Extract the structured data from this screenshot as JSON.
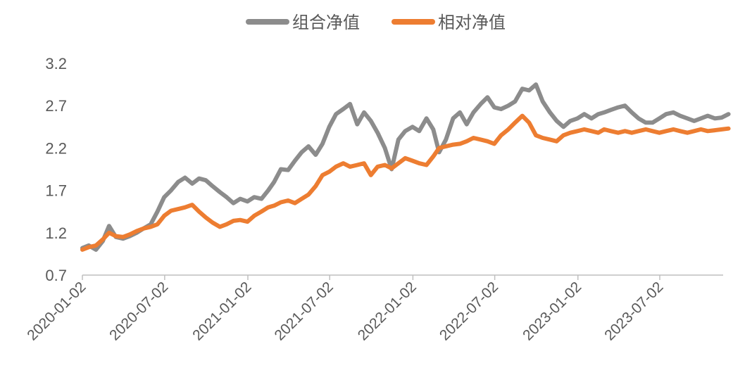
{
  "chart_data": {
    "type": "line",
    "legend_position": "top-center",
    "grid": false,
    "y_ticks": [
      "0.7",
      "1.2",
      "1.7",
      "2.2",
      "2.7",
      "3.2"
    ],
    "ylim": [
      0.7,
      3.2
    ],
    "x_ticks": [
      "2020-01-02",
      "2020-07-02",
      "2021-01-02",
      "2021-07-02",
      "2022-01-02",
      "2022-07-02",
      "2023-01-02",
      "2023-07-02"
    ],
    "x": [
      "2020-01-02",
      "2020-01-16",
      "2020-02-01",
      "2020-02-16",
      "2020-03-01",
      "2020-03-16",
      "2020-04-01",
      "2020-04-16",
      "2020-05-01",
      "2020-05-16",
      "2020-06-01",
      "2020-06-16",
      "2020-07-01",
      "2020-07-16",
      "2020-08-01",
      "2020-08-16",
      "2020-09-01",
      "2020-09-16",
      "2020-10-01",
      "2020-10-16",
      "2020-11-01",
      "2020-11-16",
      "2020-12-01",
      "2020-12-16",
      "2021-01-01",
      "2021-01-16",
      "2021-02-01",
      "2021-02-16",
      "2021-03-01",
      "2021-03-16",
      "2021-04-01",
      "2021-04-16",
      "2021-05-01",
      "2021-05-16",
      "2021-06-01",
      "2021-06-16",
      "2021-07-01",
      "2021-07-16",
      "2021-08-01",
      "2021-08-16",
      "2021-09-01",
      "2021-09-16",
      "2021-10-01",
      "2021-10-16",
      "2021-11-01",
      "2021-11-16",
      "2021-12-01",
      "2021-12-16",
      "2022-01-01",
      "2022-01-16",
      "2022-02-01",
      "2022-02-16",
      "2022-03-01",
      "2022-03-16",
      "2022-04-01",
      "2022-04-16",
      "2022-05-01",
      "2022-05-16",
      "2022-06-01",
      "2022-06-16",
      "2022-07-01",
      "2022-07-16",
      "2022-08-01",
      "2022-08-16",
      "2022-09-01",
      "2022-09-16",
      "2022-10-01",
      "2022-10-16",
      "2022-11-01",
      "2022-11-16",
      "2022-12-01",
      "2022-12-16",
      "2023-01-01",
      "2023-01-16",
      "2023-02-01",
      "2023-02-16",
      "2023-03-01",
      "2023-03-16",
      "2023-04-01",
      "2023-04-16",
      "2023-05-01",
      "2023-05-16",
      "2023-06-01",
      "2023-06-16",
      "2023-07-01",
      "2023-07-16",
      "2023-08-01",
      "2023-08-16",
      "2023-09-01",
      "2023-09-16",
      "2023-10-01",
      "2023-10-16",
      "2023-11-01",
      "2023-11-16",
      "2023-12-01"
    ],
    "series": [
      {
        "name": "组合净值",
        "color": "#8c8c8c",
        "values": [
          1.02,
          1.05,
          1.0,
          1.1,
          1.28,
          1.15,
          1.13,
          1.16,
          1.2,
          1.25,
          1.3,
          1.45,
          1.62,
          1.7,
          1.8,
          1.85,
          1.78,
          1.84,
          1.82,
          1.75,
          1.68,
          1.62,
          1.55,
          1.6,
          1.57,
          1.62,
          1.6,
          1.7,
          1.8,
          1.95,
          1.94,
          2.05,
          2.15,
          2.22,
          2.12,
          2.25,
          2.45,
          2.6,
          2.66,
          2.72,
          2.48,
          2.62,
          2.52,
          2.38,
          2.2,
          1.95,
          2.3,
          2.4,
          2.45,
          2.4,
          2.55,
          2.42,
          2.15,
          2.3,
          2.55,
          2.62,
          2.48,
          2.62,
          2.72,
          2.8,
          2.68,
          2.66,
          2.7,
          2.75,
          2.9,
          2.88,
          2.95,
          2.75,
          2.62,
          2.52,
          2.45,
          2.52,
          2.55,
          2.6,
          2.55,
          2.6,
          2.62,
          2.65,
          2.68,
          2.7,
          2.62,
          2.55,
          2.5,
          2.5,
          2.55,
          2.6,
          2.62,
          2.58,
          2.55,
          2.52,
          2.55,
          2.58,
          2.55,
          2.56,
          2.6
        ]
      },
      {
        "name": "相对净值",
        "color": "#ed7d31",
        "values": [
          1.0,
          1.03,
          1.05,
          1.12,
          1.2,
          1.16,
          1.15,
          1.18,
          1.22,
          1.25,
          1.27,
          1.3,
          1.4,
          1.46,
          1.48,
          1.5,
          1.53,
          1.45,
          1.38,
          1.32,
          1.27,
          1.3,
          1.34,
          1.35,
          1.33,
          1.4,
          1.45,
          1.5,
          1.52,
          1.56,
          1.58,
          1.55,
          1.6,
          1.65,
          1.75,
          1.88,
          1.92,
          1.98,
          2.02,
          1.98,
          2.0,
          2.02,
          1.88,
          1.98,
          2.0,
          1.96,
          2.02,
          2.08,
          2.05,
          2.02,
          2.0,
          2.1,
          2.2,
          2.22,
          2.24,
          2.25,
          2.28,
          2.32,
          2.3,
          2.28,
          2.25,
          2.35,
          2.42,
          2.5,
          2.58,
          2.5,
          2.35,
          2.32,
          2.3,
          2.28,
          2.35,
          2.38,
          2.4,
          2.42,
          2.4,
          2.38,
          2.42,
          2.4,
          2.38,
          2.4,
          2.38,
          2.4,
          2.42,
          2.4,
          2.38,
          2.4,
          2.42,
          2.4,
          2.38,
          2.4,
          2.42,
          2.4,
          2.41,
          2.42,
          2.43
        ]
      }
    ]
  }
}
